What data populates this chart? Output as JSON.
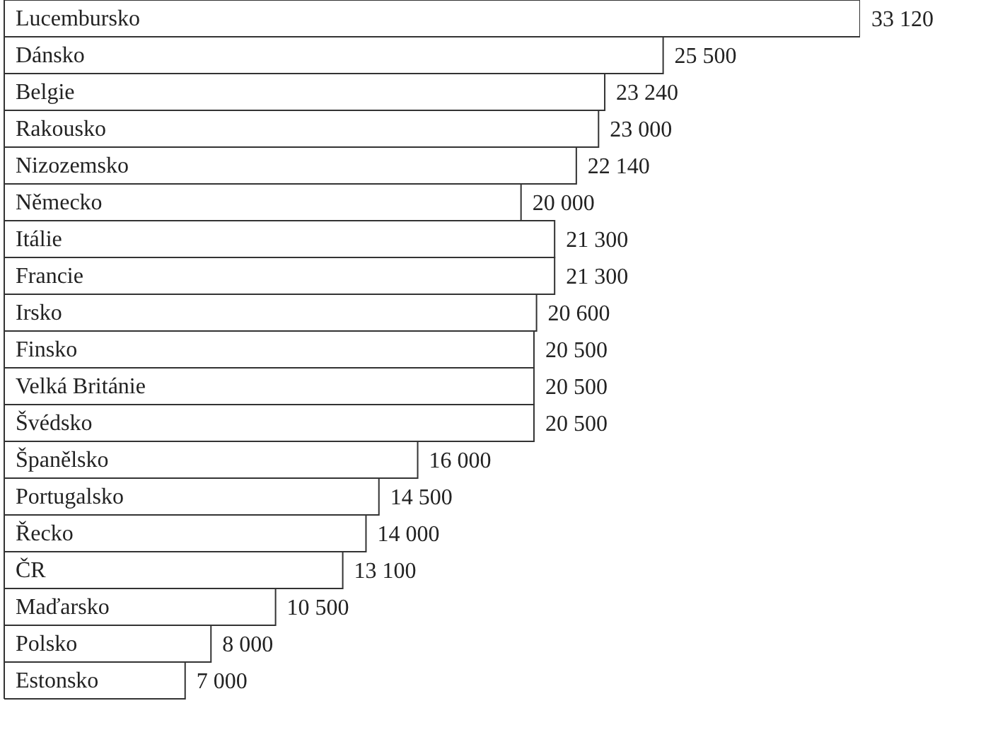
{
  "chart_data": {
    "type": "bar",
    "orientation": "horizontal",
    "categories": [
      "Lucembursko",
      "Dánsko",
      "Belgie",
      "Rakousko",
      "Nizozemsko",
      "Německo",
      "Itálie",
      "Francie",
      "Irsko",
      "Finsko",
      "Velká Británie",
      "Švédsko",
      "Španělsko",
      "Portugalsko",
      "Řecko",
      "ČR",
      "Maďarsko",
      "Polsko",
      "Estonsko"
    ],
    "values": [
      33120,
      25500,
      23240,
      23000,
      22140,
      20000,
      21300,
      21300,
      20600,
      20500,
      20500,
      20500,
      16000,
      14500,
      14000,
      13100,
      10500,
      8000,
      7000
    ],
    "value_labels": [
      "33 120",
      "25 500",
      "23 240",
      "23 000",
      "22 140",
      "20 000",
      "21 300",
      "21 300",
      "20 600",
      "20 500",
      "20 500",
      "20 500",
      "16 000",
      "14 500",
      "14 000",
      "13 100",
      "10 500",
      "8 000",
      "7 000"
    ],
    "color": "#ffffff"
  }
}
